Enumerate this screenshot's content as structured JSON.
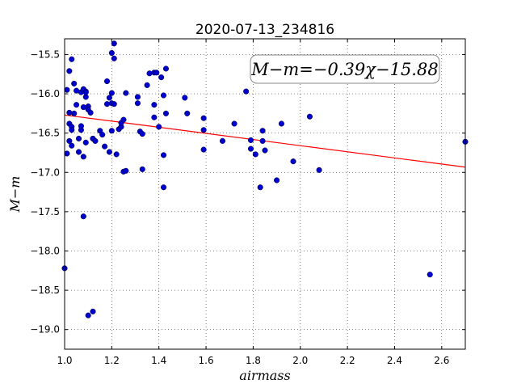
{
  "chart_data": {
    "type": "scatter",
    "title": "2020-07-13_234816",
    "xlabel": "airmass",
    "ylabel": "M−m",
    "xlim": [
      1.0,
      2.7
    ],
    "ylim": [
      -19.25,
      -15.3
    ],
    "y_inverted": false,
    "grid": true,
    "x_ticks": [
      1.0,
      1.2,
      1.4,
      1.6,
      1.8,
      2.0,
      2.2,
      2.4,
      2.6
    ],
    "x_tick_labels": [
      "1.0",
      "1.2",
      "1.4",
      "1.6",
      "1.8",
      "2.0",
      "2.2",
      "2.4",
      "2.6"
    ],
    "y_ticks": [
      -15.5,
      -16.0,
      -16.5,
      -17.0,
      -17.5,
      -18.0,
      -18.5,
      -19.0
    ],
    "y_tick_labels": [
      "−15.5",
      "−16.0",
      "−16.5",
      "−17.0",
      "−17.5",
      "−18.0",
      "−18.5",
      "−19.0"
    ],
    "annotation": "M−m=−0.39χ−15.88",
    "fit": {
      "slope": -0.39,
      "intercept": -15.88,
      "color": "#ff0000"
    },
    "point_color": "#0000cc",
    "series": [
      {
        "x": [
          1.01,
          1.01,
          1.02,
          1.02,
          1.02,
          1.02,
          1.03,
          1.03,
          1.03,
          1.03,
          1.04,
          1.04,
          1.05,
          1.05,
          1.06,
          1.06,
          1.07,
          1.07,
          1.07,
          1.08,
          1.08,
          1.08,
          1.08,
          1.09,
          1.09,
          1.09,
          1.09,
          1.1,
          1.1,
          1.11,
          1.12,
          1.12,
          1.13,
          1.15,
          1.16,
          1.17,
          1.18,
          1.18,
          1.19,
          1.19,
          1.2,
          1.2,
          1.2,
          1.2,
          1.21,
          1.21,
          1.21,
          1.22,
          1.23,
          1.24,
          1.24,
          1.25,
          1.25,
          1.26,
          1.26,
          1.31,
          1.31,
          1.32,
          1.33,
          1.33,
          1.35,
          1.36,
          1.38,
          1.38,
          1.38,
          1.39,
          1.4,
          1.41,
          1.42,
          1.42,
          1.42,
          1.43,
          1.43,
          1.51,
          1.52,
          1.59,
          1.59,
          1.59,
          1.67,
          1.72,
          1.77,
          1.79,
          1.79,
          1.81,
          1.83,
          1.84,
          1.84,
          1.85,
          1.9,
          1.92,
          1.97,
          2.04,
          2.08,
          2.55,
          2.7,
          1.0,
          1.1,
          1.12
        ],
        "y": [
          -15.95,
          -16.76,
          -15.71,
          -16.24,
          -16.38,
          -16.6,
          -15.56,
          -16.42,
          -16.46,
          -16.66,
          -16.25,
          -15.87,
          -15.96,
          -16.14,
          -16.57,
          -16.74,
          -15.98,
          -16.46,
          -16.41,
          -15.94,
          -16.17,
          -16.8,
          -17.56,
          -16.04,
          -15.97,
          -16.62,
          -15.98,
          -16.16,
          -16.2,
          -16.24,
          -16.57,
          -16.57,
          -16.6,
          -16.47,
          -16.52,
          -16.67,
          -15.84,
          -16.13,
          -16.05,
          -16.74,
          -15.48,
          -15.99,
          -16.12,
          -16.47,
          -15.36,
          -15.55,
          -16.13,
          -16.77,
          -16.45,
          -16.42,
          -16.37,
          -16.99,
          -16.33,
          -15.99,
          -16.98,
          -16.04,
          -16.12,
          -16.48,
          -16.51,
          -16.96,
          -15.89,
          -15.74,
          -15.73,
          -16.14,
          -16.3,
          -15.73,
          -16.42,
          -15.79,
          -16.02,
          -16.78,
          -17.19,
          -15.68,
          -16.25,
          -16.05,
          -16.25,
          -16.31,
          -16.46,
          -16.71,
          -16.6,
          -16.38,
          -15.97,
          -16.59,
          -16.7,
          -16.77,
          -17.19,
          -16.6,
          -16.47,
          -16.72,
          -17.1,
          -16.38,
          -16.86,
          -16.29,
          -16.97,
          -18.3,
          -16.61,
          -18.22,
          -18.82,
          -18.77
        ]
      }
    ]
  }
}
